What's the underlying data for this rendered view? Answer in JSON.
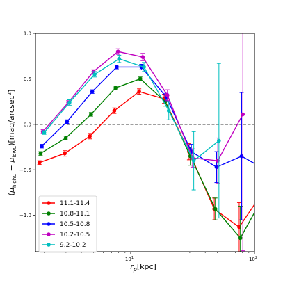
{
  "chart_data": {
    "type": "line",
    "xscale": "log",
    "xlim": [
      1.7,
      100
    ],
    "ylim": [
      -1.4,
      1.0
    ],
    "xlabel_base": "r",
    "xlabel_sub": "p",
    "xlabel_unit": "[kpc]",
    "ylabel": "(μhighC − μlowC)[mag/arcsec²]",
    "ylabel_parts": {
      "open": "(",
      "mu": "μ",
      "sub1": "highC",
      "minus": " − ",
      "sub2": "lowC",
      "close": ")[mag/arcsec",
      "sup": "2",
      "end": "]"
    },
    "yticks": [
      {
        "v": 1.0,
        "label": "1.0"
      },
      {
        "v": 0.5,
        "label": "0.5"
      },
      {
        "v": 0.0,
        "label": "0.0"
      },
      {
        "v": -0.5,
        "label": "−0.5"
      },
      {
        "v": -1.0,
        "label": "−1.0"
      }
    ],
    "xticks_major": [
      {
        "v": 10,
        "label": "10",
        "sup": "1"
      },
      {
        "v": 100,
        "label": "10",
        "sup": "2"
      }
    ],
    "xticks_minor": [
      2,
      3,
      4,
      5,
      6,
      7,
      8,
      9,
      20,
      30,
      40,
      50,
      60,
      70,
      80,
      90
    ],
    "reference_line": {
      "y": 0,
      "style": "dashed",
      "color": "#000000"
    },
    "legend_position": "lower-left",
    "series": [
      {
        "name": "11.1-11.4",
        "color": "#ff0000",
        "points": [
          {
            "x": 1.83,
            "y": -0.42,
            "e": 0.02
          },
          {
            "x": 2.93,
            "y": -0.32,
            "e": 0.03
          },
          {
            "x": 4.67,
            "y": -0.13,
            "e": 0.03
          },
          {
            "x": 7.37,
            "y": 0.15,
            "e": 0.03
          },
          {
            "x": 11.7,
            "y": 0.36,
            "e": 0.03
          },
          {
            "x": 18.6,
            "y": 0.28,
            "e": 0.05
          },
          {
            "x": 29.6,
            "y": -0.3,
            "e": 0.09
          },
          {
            "x": 47.3,
            "y": -0.93,
            "e": 0.12
          },
          {
            "x": 75.2,
            "y": -1.13,
            "e": 0.27
          },
          {
            "x": 100,
            "y": -0.88,
            "e": 0
          }
        ]
      },
      {
        "name": "10.8-11.1",
        "color": "#008000",
        "points": [
          {
            "x": 1.87,
            "y": -0.32,
            "e": 0.02
          },
          {
            "x": 2.99,
            "y": -0.15,
            "e": 0.02
          },
          {
            "x": 4.78,
            "y": 0.11,
            "e": 0.02
          },
          {
            "x": 7.54,
            "y": 0.4,
            "e": 0.02
          },
          {
            "x": 11.95,
            "y": 0.5,
            "e": 0.02
          },
          {
            "x": 19.0,
            "y": 0.25,
            "e": 0.05
          },
          {
            "x": 30.3,
            "y": -0.35,
            "e": 0.1
          },
          {
            "x": 48.3,
            "y": -0.93,
            "e": 0.12
          },
          {
            "x": 76.9,
            "y": -1.25,
            "e": 0.35
          },
          {
            "x": 100,
            "y": -0.97,
            "e": 0
          }
        ]
      },
      {
        "name": "10.5-10.8",
        "color": "#0000ff",
        "points": [
          {
            "x": 1.91,
            "y": -0.24,
            "e": 0.02
          },
          {
            "x": 3.06,
            "y": 0.03,
            "e": 0.02
          },
          {
            "x": 4.89,
            "y": 0.36,
            "e": 0.02
          },
          {
            "x": 7.71,
            "y": 0.63,
            "e": 0.02
          },
          {
            "x": 12.2,
            "y": 0.63,
            "e": 0.03
          },
          {
            "x": 19.4,
            "y": 0.3,
            "e": 0.04
          },
          {
            "x": 30.9,
            "y": -0.3,
            "e": 0.08
          },
          {
            "x": 49.4,
            "y": -0.47,
            "e": 0.17
          },
          {
            "x": 78.7,
            "y": -0.35,
            "e": 0.7
          },
          {
            "x": 100,
            "y": -0.43,
            "e": 0
          }
        ]
      },
      {
        "name": "10.2-10.5",
        "color": "#c000c0",
        "points": [
          {
            "x": 1.95,
            "y": -0.08,
            "e": 0.02
          },
          {
            "x": 3.13,
            "y": 0.24,
            "e": 0.02
          },
          {
            "x": 5.0,
            "y": 0.58,
            "e": 0.02
          },
          {
            "x": 7.89,
            "y": 0.8,
            "e": 0.03
          },
          {
            "x": 12.5,
            "y": 0.74,
            "e": 0.04
          },
          {
            "x": 19.8,
            "y": 0.32,
            "e": 0.06
          },
          {
            "x": 31.6,
            "y": -0.37,
            "e": 0.1
          },
          {
            "x": 50.5,
            "y": -0.4,
            "e": 0.25
          },
          {
            "x": 80.5,
            "y": 0.11,
            "e": 1.5
          }
        ]
      },
      {
        "name": "9.2-10.2",
        "color": "#00bfbf",
        "points": [
          {
            "x": 2.0,
            "y": -0.09,
            "e": 0.02
          },
          {
            "x": 3.2,
            "y": 0.24,
            "e": 0.03
          },
          {
            "x": 5.11,
            "y": 0.55,
            "e": 0.03
          },
          {
            "x": 8.06,
            "y": 0.72,
            "e": 0.04
          },
          {
            "x": 12.8,
            "y": 0.63,
            "e": 0.05
          },
          {
            "x": 20.3,
            "y": 0.15,
            "e": 0.1
          },
          {
            "x": 32.3,
            "y": -0.4,
            "e": 0.32
          },
          {
            "x": 51.6,
            "y": -0.18,
            "e": 0.85
          }
        ]
      }
    ]
  }
}
